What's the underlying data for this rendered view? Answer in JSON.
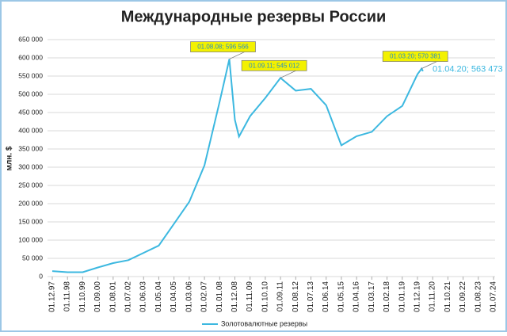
{
  "chart_data": {
    "type": "line",
    "title": "Международные резервы России",
    "y_label": "млн. $",
    "x": [
      "01.12.97",
      "01.11.98",
      "01.10.99",
      "01.09.00",
      "01.08.01",
      "01.07.02",
      "01.06.03",
      "01.05.04",
      "01.04.05",
      "01.03.06",
      "01.02.07",
      "01.01.08",
      "01.08.08",
      "01.12.08",
      "01.03.09",
      "01.11.09",
      "01.10.10",
      "01.09.11",
      "01.08.12",
      "01.07.13",
      "01.06.14",
      "01.05.15",
      "01.04.16",
      "01.03.17",
      "01.02.18",
      "01.01.19",
      "01.12.19",
      "01.03.20",
      "01.04.20"
    ],
    "series": [
      {
        "name": "Золотовалютные резервы",
        "color": "#3cb8e0",
        "values": [
          15000,
          12000,
          12000,
          25000,
          37000,
          45000,
          65000,
          85000,
          145000,
          205000,
          305000,
          480000,
          596566,
          430000,
          384000,
          440000,
          490000,
          545012,
          510000,
          515000,
          470000,
          360000,
          385000,
          397000,
          440000,
          468000,
          555000,
          570381,
          563473
        ],
        "value_labels": [
          null,
          null,
          null,
          null,
          null,
          null,
          null,
          null,
          null,
          null,
          null,
          null,
          "01.08.08; 596 566",
          null,
          null,
          null,
          null,
          "01.09.11; 545 012",
          null,
          null,
          null,
          null,
          null,
          null,
          null,
          null,
          null,
          "01.03.20; 570 381",
          "01.04.20; 563 473"
        ]
      }
    ],
    "xticks": [
      "01.12.97",
      "01.11.98",
      "01.10.99",
      "01.09.00",
      "01.08.01",
      "01.07.02",
      "01.06.03",
      "01.05.04",
      "01.04.05",
      "01.03.06",
      "01.02.07",
      "01.01.08",
      "01.12.08",
      "01.11.09",
      "01.10.10",
      "01.09.11",
      "01.08.12",
      "01.07.13",
      "01.06.14",
      "01.05.15",
      "01.04.16",
      "01.03.17",
      "01.02.18",
      "01.01.19",
      "01.12.19",
      "01.11.20",
      "01.10.21",
      "01.09.22",
      "01.08.23",
      "01.07.24"
    ],
    "ylim": [
      0,
      650000
    ],
    "yticks": [
      0,
      {
        "value": 50000,
        "label": "50 000"
      },
      {
        "value": 100000,
        "label": "100 000"
      },
      {
        "value": 150000,
        "label": "150 000"
      },
      {
        "value": 200000,
        "label": "200 000"
      },
      {
        "value": 250000,
        "label": "250 000"
      },
      {
        "value": 300000,
        "label": "300 000"
      },
      {
        "value": 350000,
        "label": "350 000"
      },
      {
        "value": 400000,
        "label": "400 000"
      },
      {
        "value": 450000,
        "label": "450 000"
      },
      {
        "value": 500000,
        "label": "500 000"
      },
      {
        "value": 550000,
        "label": "550 000"
      },
      {
        "value": 600000,
        "label": "600 000"
      },
      {
        "value": 650000,
        "label": "650 000"
      }
    ],
    "grid": true
  }
}
